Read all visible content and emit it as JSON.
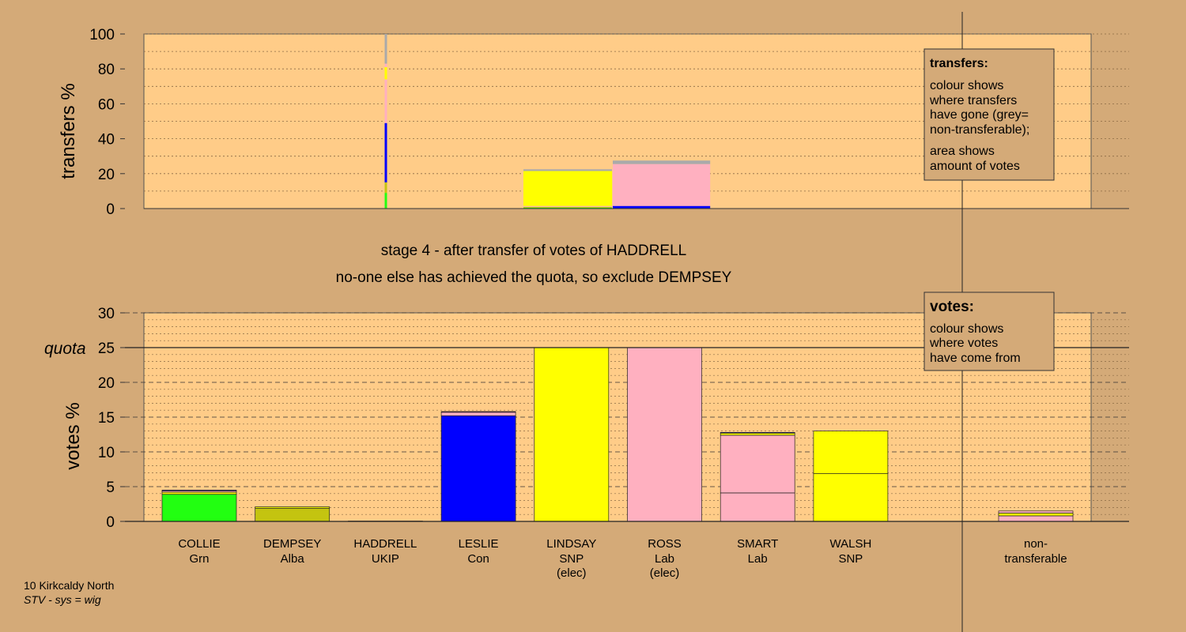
{
  "colors": {
    "background": "#d4aa78",
    "plot_bg": "#ffcc88",
    "Grn": "#22ff11",
    "Alba": "#c4c410",
    "UKIP": "#9922aa",
    "Con": "#0000ff",
    "SNP": "#ffff00",
    "Lab": "#ffb0c0",
    "nontransferable": "#aaaaaa"
  },
  "stage_title": "stage 4 - after transfer of votes of HADDRELL",
  "stage_subtitle": "no-one else has achieved the quota, so exclude DEMPSEY",
  "footer": {
    "line1": "10 Kirkcaldy North",
    "line2": "STV - sys = wig"
  },
  "legend_transfers": {
    "heading": "transfers:",
    "lines1": [
      "colour shows",
      "where transfers",
      "have gone (grey=",
      "non-transferable);"
    ],
    "lines2": [
      "area shows",
      "amount of votes"
    ]
  },
  "legend_votes": {
    "heading": "votes:",
    "lines": [
      "colour shows",
      "where votes",
      "have come from"
    ]
  },
  "chart_data": [
    {
      "type": "bar",
      "name": "transfers",
      "ylabel": "transfers %",
      "ylim": [
        0,
        100
      ],
      "yticks": [
        0,
        20,
        40,
        60,
        80,
        100
      ],
      "grid": true,
      "bars": [
        {
          "candidate": "HADDRELL",
          "width_votes": 0.1,
          "segments": [
            {
              "to": "Grn",
              "value": 9
            },
            {
              "to": "Alba",
              "value": 6
            },
            {
              "to": "Con",
              "value": 34
            },
            {
              "to": "Lab",
              "value": 16
            },
            {
              "to": "Lab",
              "value": 9
            },
            {
              "to": "SNP",
              "value": 7
            },
            {
              "to": "Lab",
              "value": 2
            },
            {
              "to": "nontransferable",
              "value": 17
            }
          ]
        },
        {
          "candidate": "LINDSAY",
          "width_votes": 5.0,
          "segments": [
            {
              "to": "Grn",
              "value": 0.5
            },
            {
              "to": "Alba",
              "value": 0.5
            },
            {
              "to": "Lab",
              "value": 0.5
            },
            {
              "to": "SNP",
              "value": 20
            },
            {
              "to": "nontransferable",
              "value": 1
            }
          ]
        },
        {
          "candidate": "ROSS",
          "width_votes": 5.5,
          "segments": [
            {
              "to": "Con",
              "value": 1.5
            },
            {
              "to": "Lab",
              "value": 24
            },
            {
              "to": "nontransferable",
              "value": 2
            }
          ]
        }
      ]
    },
    {
      "type": "bar",
      "name": "votes",
      "ylabel": "votes %",
      "ylim": [
        0,
        30
      ],
      "yticks": [
        0,
        5,
        10,
        15,
        20,
        25,
        30
      ],
      "quota": 25,
      "quota_label": "quota",
      "grid": true,
      "categories": [
        {
          "name": "COLLIE",
          "party": "Grn",
          "elected": ""
        },
        {
          "name": "DEMPSEY",
          "party": "Alba",
          "elected": ""
        },
        {
          "name": "HADDRELL",
          "party": "UKIP",
          "elected": ""
        },
        {
          "name": "LESLIE",
          "party": "Con",
          "elected": ""
        },
        {
          "name": "LINDSAY",
          "party": "SNP",
          "elected": "(elec)"
        },
        {
          "name": "ROSS",
          "party": "Lab",
          "elected": "(elec)"
        },
        {
          "name": "SMART",
          "party": "Lab",
          "elected": ""
        },
        {
          "name": "WALSH",
          "party": "SNP",
          "elected": ""
        }
      ],
      "stacks": [
        [
          {
            "from": "Grn",
            "value": 3.9
          },
          {
            "from": "SNP",
            "value": 0.3
          },
          {
            "from": "Lab",
            "value": 0.2
          },
          {
            "from": "Con",
            "value": 0.1
          }
        ],
        [
          {
            "from": "Alba",
            "value": 1.9
          },
          {
            "from": "SNP",
            "value": 0.2
          }
        ],
        [
          {
            "from": "UKIP",
            "value": 0.05
          }
        ],
        [
          {
            "from": "Con",
            "value": 15.2
          },
          {
            "from": "Lab",
            "value": 0.5
          },
          {
            "from": "UKIP",
            "value": 0.1
          }
        ],
        [
          {
            "from": "SNP",
            "value": 25.0
          }
        ],
        [
          {
            "from": "Lab",
            "value": 25.0
          }
        ],
        [
          {
            "from": "Lab",
            "value": 4.1
          },
          {
            "from": "Lab",
            "value": 8.3
          },
          {
            "from": "SNP",
            "value": 0.3
          },
          {
            "from": "Con",
            "value": 0.1
          }
        ],
        [
          {
            "from": "SNP",
            "value": 6.9
          },
          {
            "from": "SNP",
            "value": 6.1
          }
        ]
      ],
      "nontransferable": {
        "label_line1": "non-",
        "label_line2": "transferable",
        "stack": [
          {
            "from": "Lab",
            "value": 0.8
          },
          {
            "from": "SNP",
            "value": 0.4
          },
          {
            "from": "Lab",
            "value": 0.3
          }
        ]
      }
    }
  ]
}
